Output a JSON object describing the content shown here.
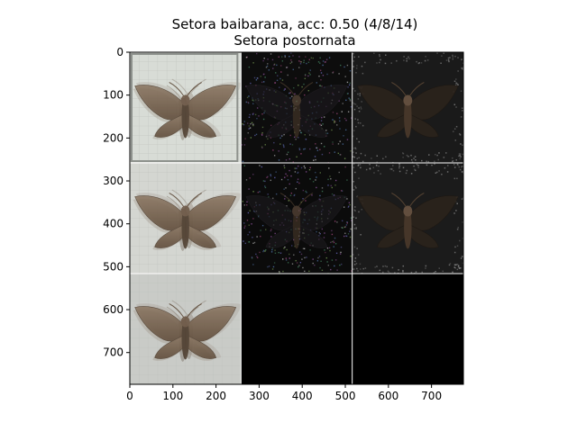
{
  "chart_data": {
    "type": "image-grid",
    "title_line1": "Setora baibarana, acc: 0.50 (4/8/14)",
    "title_line2": "Setora postornata",
    "xlim": [
      0,
      774
    ],
    "ylim": [
      774,
      0
    ],
    "x_ticks": [
      0,
      100,
      200,
      300,
      400,
      500,
      600,
      700
    ],
    "y_ticks": [
      0,
      100,
      200,
      300,
      400,
      500,
      600,
      700
    ],
    "grid_rows": 3,
    "grid_cols": 3,
    "tile_size": 258,
    "tiles": [
      {
        "row": 0,
        "col": 0,
        "kind": "photo",
        "bg": "#d8dcd6"
      },
      {
        "row": 0,
        "col": 1,
        "kind": "saliency",
        "bg": "#0d0d0d"
      },
      {
        "row": 0,
        "col": 2,
        "kind": "overlay",
        "bg": "#1a1a1a"
      },
      {
        "row": 1,
        "col": 0,
        "kind": "photo",
        "bg": "#d4d6d1"
      },
      {
        "row": 1,
        "col": 1,
        "kind": "saliency",
        "bg": "#0b0b0b"
      },
      {
        "row": 1,
        "col": 2,
        "kind": "overlay",
        "bg": "#1b1b1b"
      },
      {
        "row": 2,
        "col": 0,
        "kind": "photo",
        "bg": "#c9cbc7"
      },
      {
        "row": 2,
        "col": 1,
        "kind": "empty",
        "bg": "#000000"
      },
      {
        "row": 2,
        "col": 2,
        "kind": "empty",
        "bg": "#000000"
      }
    ]
  }
}
